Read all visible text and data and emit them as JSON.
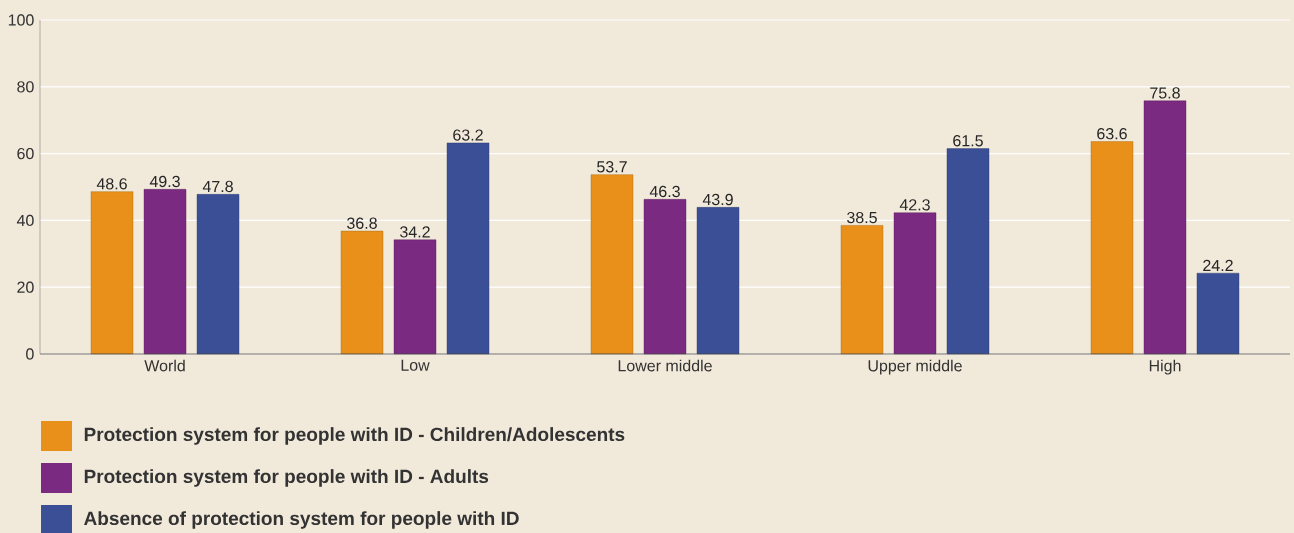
{
  "chart_data": {
    "type": "bar",
    "categories": [
      "World",
      "Low",
      "Lower middle",
      "Upper middle",
      "High"
    ],
    "series": [
      {
        "name": "Protection system for people with ID - Children/Adolescents",
        "color": "#e8901a",
        "values": [
          48.6,
          36.8,
          53.7,
          38.5,
          63.6
        ]
      },
      {
        "name": "Protection system for people with ID - Adults",
        "color": "#7a2a80",
        "values": [
          49.3,
          34.2,
          46.3,
          42.3,
          75.8
        ]
      },
      {
        "name": "Absence of protection system for people with ID",
        "color": "#3b4f96",
        "values": [
          47.8,
          63.2,
          43.9,
          61.5,
          24.2
        ]
      }
    ],
    "ylim": [
      0,
      100
    ],
    "yticks": [
      0,
      20,
      40,
      60,
      80,
      100
    ],
    "grid": "y",
    "legend": "bottom",
    "data_labels": true
  }
}
